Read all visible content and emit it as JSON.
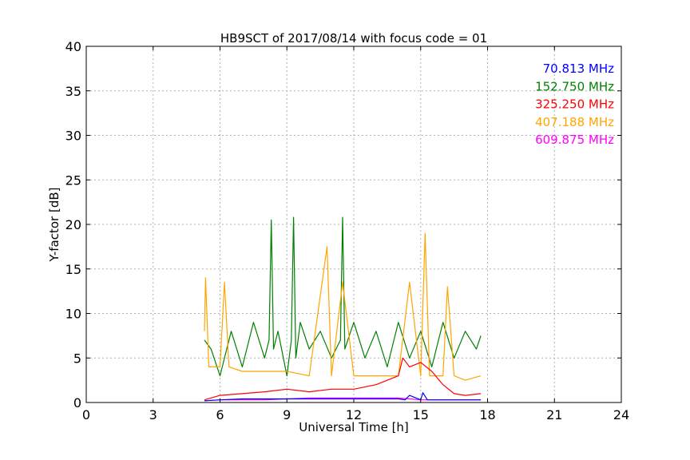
{
  "chart_data": {
    "type": "line",
    "title": "HB9SCT of 2017/08/14 with focus code = 01",
    "xlabel": "Universal Time [h]",
    "ylabel": "Y-factor [dB]",
    "xlim": [
      0,
      24
    ],
    "ylim": [
      0,
      40
    ],
    "xticks": [
      0,
      3,
      6,
      9,
      12,
      15,
      18,
      21,
      24
    ],
    "yticks": [
      0,
      5,
      10,
      15,
      20,
      25,
      30,
      35,
      40
    ],
    "grid": true,
    "legend_position": "top-right",
    "series": [
      {
        "name": "70.813 MHz",
        "color": "#0000ff",
        "x": [
          5.3,
          6,
          7,
          8,
          9,
          10,
          11,
          12,
          13,
          14,
          14.3,
          14.5,
          15,
          15.1,
          15.3,
          16,
          17,
          17.7
        ],
        "y": [
          0.2,
          0.3,
          0.4,
          0.4,
          0.4,
          0.4,
          0.4,
          0.4,
          0.4,
          0.4,
          0.3,
          0.8,
          0.3,
          1.1,
          0.3,
          0.3,
          0.3,
          0.3
        ]
      },
      {
        "name": "152.750 MHz",
        "color": "#008000",
        "x": [
          5.3,
          5.6,
          6,
          6.5,
          7,
          7.5,
          8,
          8.2,
          8.3,
          8.4,
          8.6,
          9,
          9.2,
          9.3,
          9.4,
          9.6,
          10,
          10.5,
          11,
          11.4,
          11.5,
          11.6,
          12,
          12.5,
          13,
          13.5,
          14,
          14.5,
          15,
          15.5,
          16,
          16.5,
          17,
          17.5,
          17.7
        ],
        "y": [
          7,
          6,
          3,
          8,
          4,
          9,
          5,
          7,
          20.5,
          6,
          8,
          3,
          7,
          20.8,
          5,
          9,
          6,
          8,
          5,
          7,
          20.8,
          6,
          9,
          5,
          8,
          4,
          9,
          5,
          8,
          4,
          9,
          5,
          8,
          6,
          7.5
        ]
      },
      {
        "name": "325.250 MHz",
        "color": "#ff0000",
        "x": [
          5.3,
          6,
          7,
          8,
          9,
          10,
          11,
          12,
          13,
          14,
          14.2,
          14.5,
          15,
          15.5,
          16,
          16.5,
          17,
          17.7
        ],
        "y": [
          0.3,
          0.8,
          1.0,
          1.2,
          1.5,
          1.2,
          1.5,
          1.5,
          2.0,
          3.0,
          5.0,
          4.0,
          4.5,
          3.5,
          2.0,
          1.0,
          0.8,
          1.0
        ]
      },
      {
        "name": "407.188 MHz",
        "color": "#ffa500",
        "x": [
          5.3,
          5.35,
          5.5,
          6,
          6.2,
          6.4,
          7,
          8,
          9,
          10,
          10.8,
          11,
          11.5,
          12,
          13,
          14,
          14.5,
          15,
          15.2,
          15.4,
          16,
          16.2,
          16.5,
          17,
          17.7
        ],
        "y": [
          8,
          14,
          4,
          4,
          13.5,
          4,
          3.5,
          3.5,
          3.5,
          3.0,
          17.5,
          3.0,
          13.5,
          3.0,
          3.0,
          3.0,
          13.5,
          3.0,
          19,
          3.0,
          3.0,
          13.0,
          3.0,
          2.5,
          3.0
        ]
      },
      {
        "name": "609.875 MHz",
        "color": "#ff00ff",
        "x": [
          5.3,
          6,
          7,
          8,
          9,
          10,
          11,
          12,
          13,
          14,
          15,
          16,
          17,
          17.7
        ],
        "y": [
          0.2,
          0.3,
          0.3,
          0.3,
          0.4,
          0.5,
          0.5,
          0.5,
          0.5,
          0.5,
          0.3,
          0.3,
          0.3,
          0.3
        ]
      }
    ]
  }
}
